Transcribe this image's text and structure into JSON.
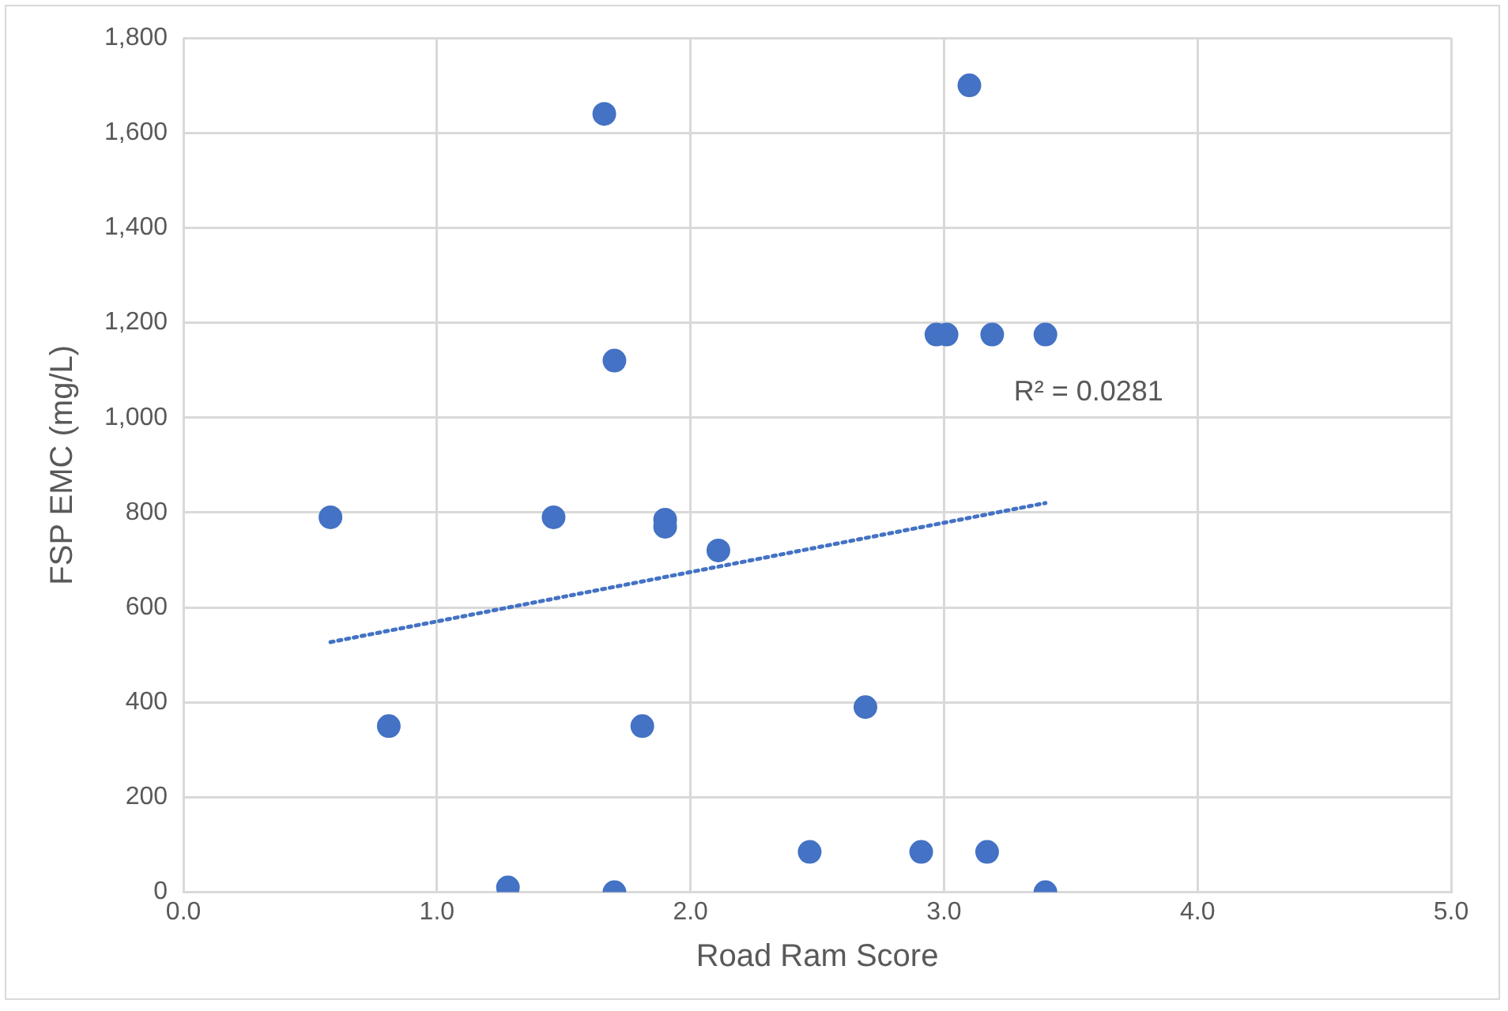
{
  "chart_data": {
    "type": "scatter",
    "xlabel": "Road Ram Score",
    "ylabel": "FSP EMC (mg/L)",
    "xlim": [
      0,
      5
    ],
    "xticks": [
      {
        "value": 0,
        "label": "0.0"
      },
      {
        "value": 1,
        "label": "1.0"
      },
      {
        "value": 2,
        "label": "2.0"
      },
      {
        "value": 3,
        "label": "3.0"
      },
      {
        "value": 4,
        "label": "4.0"
      },
      {
        "value": 5,
        "label": "5.0"
      }
    ],
    "ylim": [
      0,
      1800
    ],
    "yticks": [
      0,
      200,
      400,
      600,
      800,
      {
        "value": 1000,
        "label": "1,000"
      },
      {
        "value": 1200,
        "label": "1,200"
      },
      {
        "value": 1400,
        "label": "1,400"
      },
      {
        "value": 1600,
        "label": "1,600"
      },
      {
        "value": 1800,
        "label": "1,800"
      }
    ],
    "grid": true,
    "legend": false,
    "marker": "circle",
    "series": [
      {
        "color": "#4472c4",
        "x": [
          0.58,
          0.81,
          1.28,
          1.46,
          1.66,
          1.7,
          1.7,
          1.81,
          1.9,
          1.9,
          2.11,
          2.47,
          2.69,
          2.91,
          2.97,
          3.01,
          3.1,
          3.17,
          3.19,
          3.4,
          3.4
        ],
        "values": [
          790,
          350,
          10,
          790,
          1640,
          1120,
          0,
          350,
          785,
          770,
          720,
          85,
          390,
          85,
          1175,
          1175,
          1700,
          85,
          1175,
          1175,
          0
        ]
      },
      {
        "type": "line",
        "color": "#4472c4",
        "line_style": "dotted",
        "marker": "none",
        "x": [
          0.58,
          3.4
        ],
        "values": [
          527,
          820
        ]
      }
    ],
    "annotations": [
      "R² = 0.0281"
    ]
  }
}
